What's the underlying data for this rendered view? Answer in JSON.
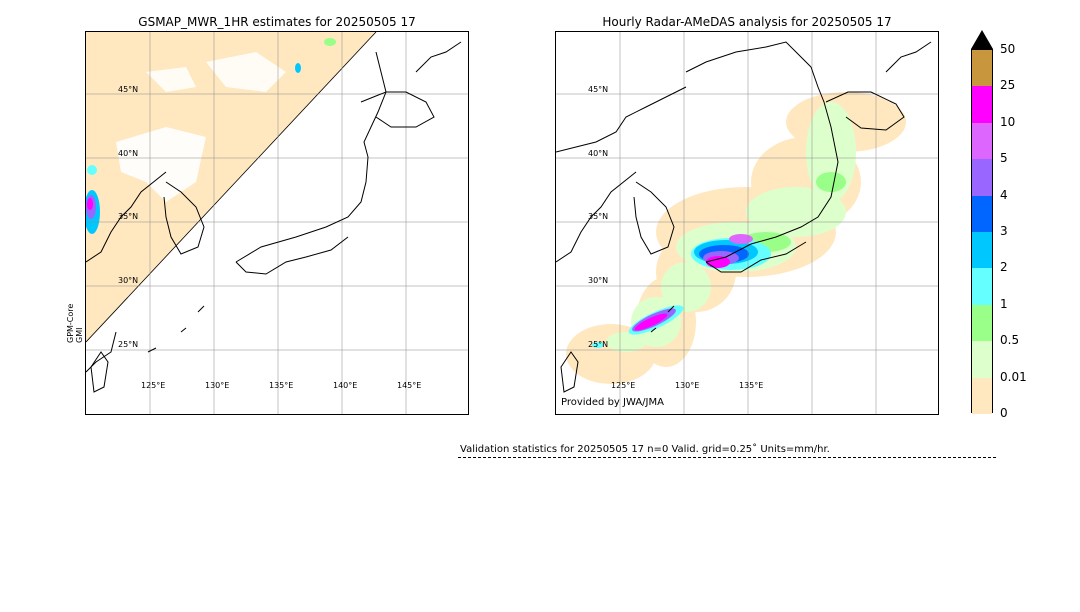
{
  "left_panel": {
    "title": "GSMAP_MWR_1HR estimates for 20250505 17",
    "lat_labels": [
      "45°N",
      "40°N",
      "35°N",
      "30°N",
      "25°N"
    ],
    "lon_labels": [
      "125°E",
      "130°E",
      "135°E",
      "140°E",
      "145°E"
    ],
    "sensor_label_1": "GPM-Core",
    "sensor_label_2": "GMI"
  },
  "right_panel": {
    "title": "Hourly Radar-AMeDAS analysis for 20250505 17",
    "lat_labels": [
      "45°N",
      "40°N",
      "35°N",
      "30°N",
      "25°N"
    ],
    "lon_labels": [
      "125°E",
      "130°E",
      "135°E"
    ],
    "credit": "Provided by JWA/JMA"
  },
  "colorbar": {
    "ticks": [
      "50",
      "25",
      "10",
      "5",
      "4",
      "3",
      "2",
      "1",
      "0.5",
      "0.01",
      "0"
    ],
    "colors": [
      "#c8963c",
      "#ff00ff",
      "#dd66ff",
      "#9966ff",
      "#0066ff",
      "#00c8ff",
      "#66ffff",
      "#99ff88",
      "#ddffcc",
      "#ffe8c0"
    ],
    "extend_color": "#000000"
  },
  "validation_text": "Validation statistics for 20250505 17  n=0 Valid. grid=0.25˚ Units=mm/hr."
}
